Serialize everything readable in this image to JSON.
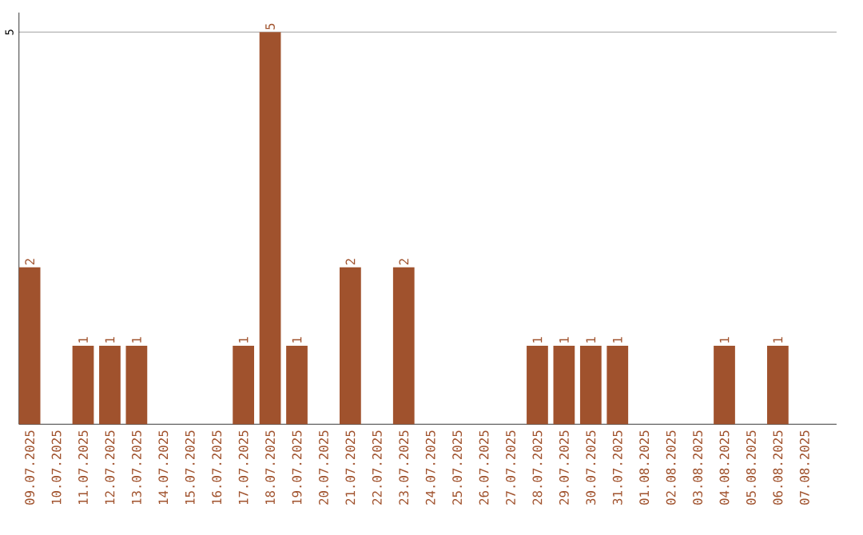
{
  "chart_data": {
    "type": "bar",
    "categories": [
      "09.07.2025",
      "10.07.2025",
      "11.07.2025",
      "12.07.2025",
      "13.07.2025",
      "14.07.2025",
      "15.07.2025",
      "16.07.2025",
      "17.07.2025",
      "18.07.2025",
      "19.07.2025",
      "20.07.2025",
      "21.07.2025",
      "22.07.2025",
      "23.07.2025",
      "24.07.2025",
      "25.07.2025",
      "26.07.2025",
      "27.07.2025",
      "28.07.2025",
      "29.07.2025",
      "30.07.2025",
      "31.07.2025",
      "01.08.2025",
      "02.08.2025",
      "03.08.2025",
      "04.08.2025",
      "05.08.2025",
      "06.08.2025",
      "07.08.2025"
    ],
    "values": [
      2,
      0,
      1,
      1,
      1,
      0,
      0,
      0,
      1,
      5,
      1,
      0,
      2,
      0,
      2,
      0,
      0,
      0,
      0,
      1,
      1,
      1,
      1,
      0,
      0,
      0,
      1,
      0,
      1,
      0
    ],
    "value_labels": [
      "2",
      null,
      "1",
      "1",
      "1",
      null,
      null,
      null,
      "1",
      "5",
      "1",
      null,
      "2",
      null,
      "2",
      null,
      null,
      null,
      null,
      "1",
      "1",
      "1",
      "1",
      null,
      null,
      null,
      "1",
      null,
      "1",
      null
    ],
    "color": "#a0522d",
    "ylim": [
      0,
      5.25
    ],
    "yticks": [
      5
    ],
    "grid": "y"
  }
}
